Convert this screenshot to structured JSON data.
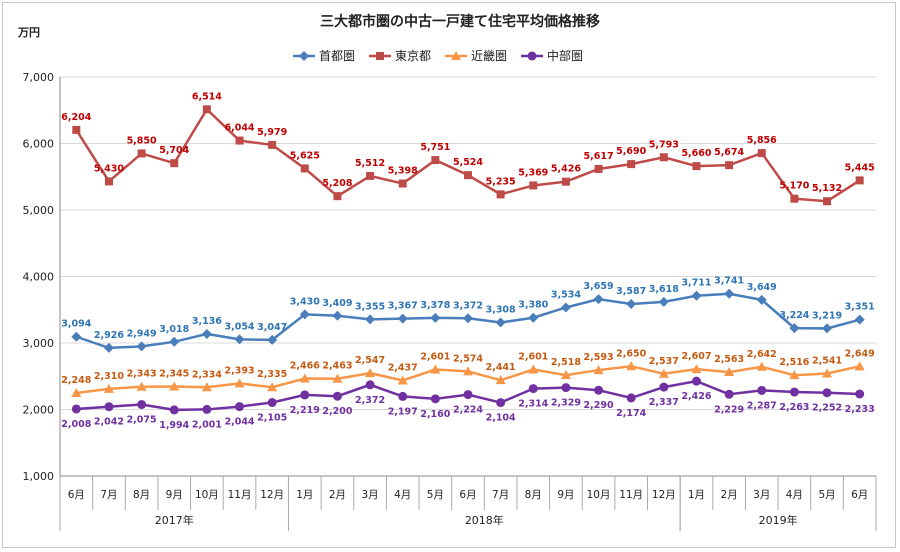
{
  "chart_data": {
    "type": "line",
    "title": "三大都市圏の中古一戸建て住宅平均価格推移",
    "unit_label": "万円",
    "ylim": [
      1000,
      7000
    ],
    "y_ticks": [
      "1,000",
      "2,000",
      "3,000",
      "4,000",
      "5,000",
      "6,000",
      "7,000"
    ],
    "grid": "horizontal",
    "legend_position": "top",
    "categories": [
      "6月",
      "7月",
      "8月",
      "9月",
      "10月",
      "11月",
      "12月",
      "1月",
      "2月",
      "3月",
      "4月",
      "5月",
      "6月",
      "7月",
      "8月",
      "9月",
      "10月",
      "11月",
      "12月",
      "1月",
      "2月",
      "3月",
      "4月",
      "5月",
      "6月"
    ],
    "year_groups": [
      {
        "label": "2017年",
        "start": 0,
        "end": 6
      },
      {
        "label": "2018年",
        "start": 7,
        "end": 18
      },
      {
        "label": "2019年",
        "start": 19,
        "end": 24
      }
    ],
    "series": [
      {
        "name": "首都圏",
        "color": "#4a7ebb",
        "label_color": "#2e75b6",
        "marker": "diamond",
        "label_position": "above",
        "values": [
          3094,
          2926,
          2949,
          3018,
          3136,
          3054,
          3047,
          3430,
          3409,
          3355,
          3367,
          3378,
          3372,
          3308,
          3380,
          3534,
          3659,
          3587,
          3618,
          3711,
          3741,
          3649,
          3224,
          3219,
          3351
        ]
      },
      {
        "name": "東京都",
        "color": "#be4b48",
        "label_color": "#c00000",
        "marker": "square",
        "label_position": "above",
        "values": [
          6204,
          5430,
          5850,
          5704,
          6514,
          6044,
          5979,
          5625,
          5208,
          5512,
          5398,
          5751,
          5524,
          5235,
          5369,
          5426,
          5617,
          5690,
          5793,
          5660,
          5674,
          5856,
          5170,
          5132,
          5445
        ]
      },
      {
        "name": "近畿圏",
        "color": "#f79646",
        "label_color": "#c55a11",
        "marker": "triangle",
        "label_position": "above",
        "values": [
          2248,
          2310,
          2343,
          2345,
          2334,
          2393,
          2335,
          2466,
          2463,
          2547,
          2437,
          2601,
          2574,
          2441,
          2601,
          2518,
          2593,
          2650,
          2537,
          2607,
          2563,
          2642,
          2516,
          2541,
          2649
        ]
      },
      {
        "name": "中部圏",
        "color": "#7030a0",
        "label_color": "#7030a0",
        "marker": "circle",
        "label_position": "below",
        "values": [
          2008,
          2042,
          2075,
          1994,
          2001,
          2044,
          2105,
          2219,
          2200,
          2372,
          2197,
          2160,
          2224,
          2104,
          2314,
          2329,
          2290,
          2174,
          2337,
          2426,
          2229,
          2287,
          2263,
          2252,
          2233
        ]
      }
    ]
  }
}
